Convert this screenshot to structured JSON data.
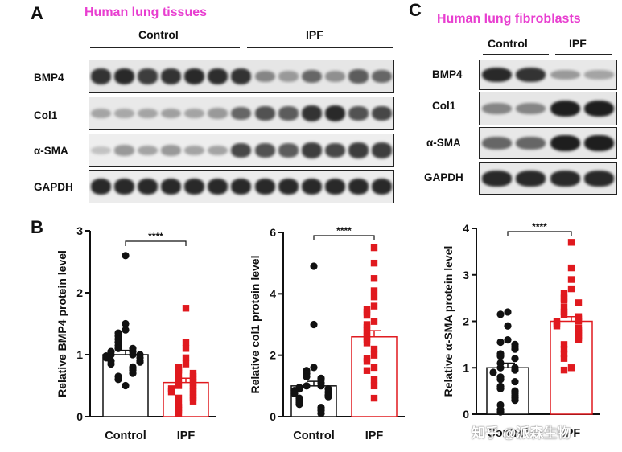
{
  "panels": {
    "A": {
      "letter": "A",
      "title": "Human lung tissues",
      "group_left": "Control",
      "group_right": "IPF",
      "rows": [
        "BMP4",
        "Col1",
        "α-SMA",
        "GAPDH"
      ]
    },
    "B": {
      "letter": "B"
    },
    "C": {
      "letter": "C",
      "title": "Human lung fibroblasts",
      "group_left": "Control",
      "group_right": "IPF",
      "rows": [
        "BMP4",
        "Col1",
        "α-SMA",
        "GAPDH"
      ]
    }
  },
  "colors": {
    "title": "#e83ed0",
    "control": "#111111",
    "ipf": "#e0191e"
  },
  "watermark": "知乎 @派森生物",
  "blots": {
    "A": {
      "BMP4": [
        0.85,
        0.9,
        0.8,
        0.85,
        0.9,
        0.88,
        0.85,
        0.45,
        0.35,
        0.6,
        0.4,
        0.65,
        0.6
      ],
      "Col1": [
        0.3,
        0.28,
        0.3,
        0.32,
        0.3,
        0.35,
        0.6,
        0.7,
        0.65,
        0.85,
        0.9,
        0.7,
        0.75
      ],
      "α-SMA": [
        0.15,
        0.35,
        0.3,
        0.35,
        0.3,
        0.3,
        0.75,
        0.7,
        0.65,
        0.8,
        0.75,
        0.8,
        0.8
      ],
      "GAPDH": [
        0.9,
        0.9,
        0.9,
        0.9,
        0.9,
        0.9,
        0.9,
        0.9,
        0.9,
        0.9,
        0.9,
        0.9,
        0.9
      ]
    },
    "C": {
      "BMP4": [
        0.9,
        0.85,
        0.35,
        0.3
      ],
      "Col1": [
        0.45,
        0.45,
        0.95,
        0.95
      ],
      "α-SMA": [
        0.6,
        0.6,
        0.95,
        0.95
      ],
      "GAPDH": [
        0.9,
        0.9,
        0.9,
        0.9
      ]
    }
  },
  "chart_data": [
    {
      "type": "bar",
      "title": "",
      "ylabel": "Relative BMP4 protein level",
      "categories": [
        "Control",
        "IPF"
      ],
      "ylim": [
        0,
        3
      ],
      "yticks": [
        0,
        1,
        2,
        3
      ],
      "significance": "****",
      "series": [
        {
          "name": "Control",
          "mean": 1.0,
          "sem": 0.07,
          "points": [
            2.6,
            1.5,
            1.4,
            1.35,
            1.3,
            1.25,
            1.2,
            1.15,
            1.1,
            1.1,
            1.05,
            1.05,
            1.0,
            1.0,
            1.0,
            0.98,
            0.95,
            0.95,
            0.9,
            0.9,
            0.88,
            0.85,
            0.8,
            0.78,
            0.75,
            0.7,
            0.65,
            0.6,
            0.5
          ]
        },
        {
          "name": "IPF",
          "mean": 0.55,
          "sem": 0.07,
          "points": [
            1.75,
            1.2,
            1.1,
            0.95,
            0.85,
            0.8,
            0.75,
            0.7,
            0.7,
            0.65,
            0.6,
            0.6,
            0.55,
            0.5,
            0.5,
            0.45,
            0.45,
            0.4,
            0.4,
            0.35,
            0.3,
            0.3,
            0.25,
            0.2,
            0.15,
            0.1,
            0.05
          ]
        }
      ]
    },
    {
      "type": "bar",
      "title": "",
      "ylabel": "Relative col1 protein level",
      "categories": [
        "Control",
        "IPF"
      ],
      "ylim": [
        0,
        6
      ],
      "yticks": [
        0,
        2,
        4,
        6
      ],
      "significance": "****",
      "series": [
        {
          "name": "Control",
          "mean": 1.0,
          "sem": 0.15,
          "points": [
            4.9,
            3.0,
            1.6,
            1.5,
            1.4,
            1.3,
            1.25,
            1.2,
            1.1,
            1.0,
            1.0,
            0.95,
            0.9,
            0.9,
            0.85,
            0.8,
            0.8,
            0.75,
            0.7,
            0.65,
            0.6,
            0.55,
            0.5,
            0.45,
            0.4,
            0.3,
            0.25,
            0.2,
            0.1
          ]
        },
        {
          "name": "IPF",
          "mean": 2.6,
          "sem": 0.2,
          "points": [
            5.5,
            5.0,
            4.5,
            4.1,
            3.9,
            3.6,
            3.5,
            3.4,
            3.3,
            3.1,
            3.0,
            2.9,
            2.8,
            2.7,
            2.6,
            2.5,
            2.4,
            2.2,
            2.0,
            1.9,
            1.8,
            1.6,
            1.5,
            1.2,
            1.0,
            0.6
          ]
        }
      ]
    },
    {
      "type": "bar",
      "title": "",
      "ylabel": "Relative α-SMA protein level",
      "categories": [
        "Control",
        "IPF"
      ],
      "ylim": [
        0,
        4
      ],
      "yticks": [
        0,
        1,
        2,
        3,
        4
      ],
      "significance": "****",
      "series": [
        {
          "name": "Control",
          "mean": 1.0,
          "sem": 0.1,
          "points": [
            2.2,
            2.15,
            1.9,
            1.6,
            1.55,
            1.5,
            1.45,
            1.4,
            1.3,
            1.25,
            1.2,
            1.1,
            1.0,
            1.0,
            0.95,
            0.9,
            0.8,
            0.75,
            0.7,
            0.6,
            0.55,
            0.5,
            0.45,
            0.4,
            0.35,
            0.3,
            0.2,
            0.1,
            0.05
          ]
        },
        {
          "name": "IPF",
          "mean": 2.0,
          "sem": 0.1,
          "points": [
            3.7,
            3.15,
            2.9,
            2.7,
            2.6,
            2.5,
            2.45,
            2.4,
            2.3,
            2.2,
            2.15,
            2.1,
            2.05,
            2.0,
            2.0,
            1.95,
            1.9,
            1.85,
            1.8,
            1.75,
            1.7,
            1.65,
            1.6,
            1.5,
            1.4,
            1.3,
            1.2,
            1.0,
            0.95
          ]
        }
      ]
    }
  ]
}
